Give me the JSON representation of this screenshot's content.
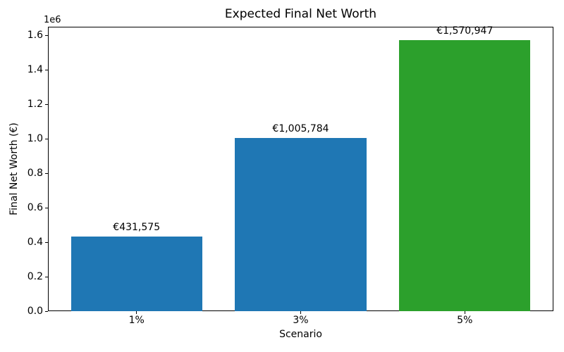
{
  "figure": {
    "background": "#ffffff",
    "text_color": "#000000"
  },
  "chart_data": {
    "type": "bar",
    "title": "Expected Final Net Worth",
    "xlabel": "Scenario",
    "ylabel": "Final Net Worth (€)",
    "categories": [
      "1%",
      "3%",
      "5%"
    ],
    "values": [
      431575,
      1005784,
      1570947
    ],
    "bar_labels": [
      "€431,575",
      "€1,005,784",
      "€1,570,947"
    ],
    "bar_colors": [
      "#1f77b4",
      "#1f77b4",
      "#2ca02c"
    ],
    "ylim": [
      0,
      1649494
    ],
    "yticks": [
      0,
      200000,
      400000,
      600000,
      800000,
      1000000,
      1200000,
      1400000,
      1600000
    ],
    "ytick_labels": [
      "0.0",
      "0.2",
      "0.4",
      "0.6",
      "0.8",
      "1.0",
      "1.2",
      "1.4",
      "1.6"
    ],
    "y_offset_text": "1e6",
    "bar_width_fraction": 0.8,
    "x_margin_units": 0.54,
    "grid": false,
    "legend": null
  }
}
